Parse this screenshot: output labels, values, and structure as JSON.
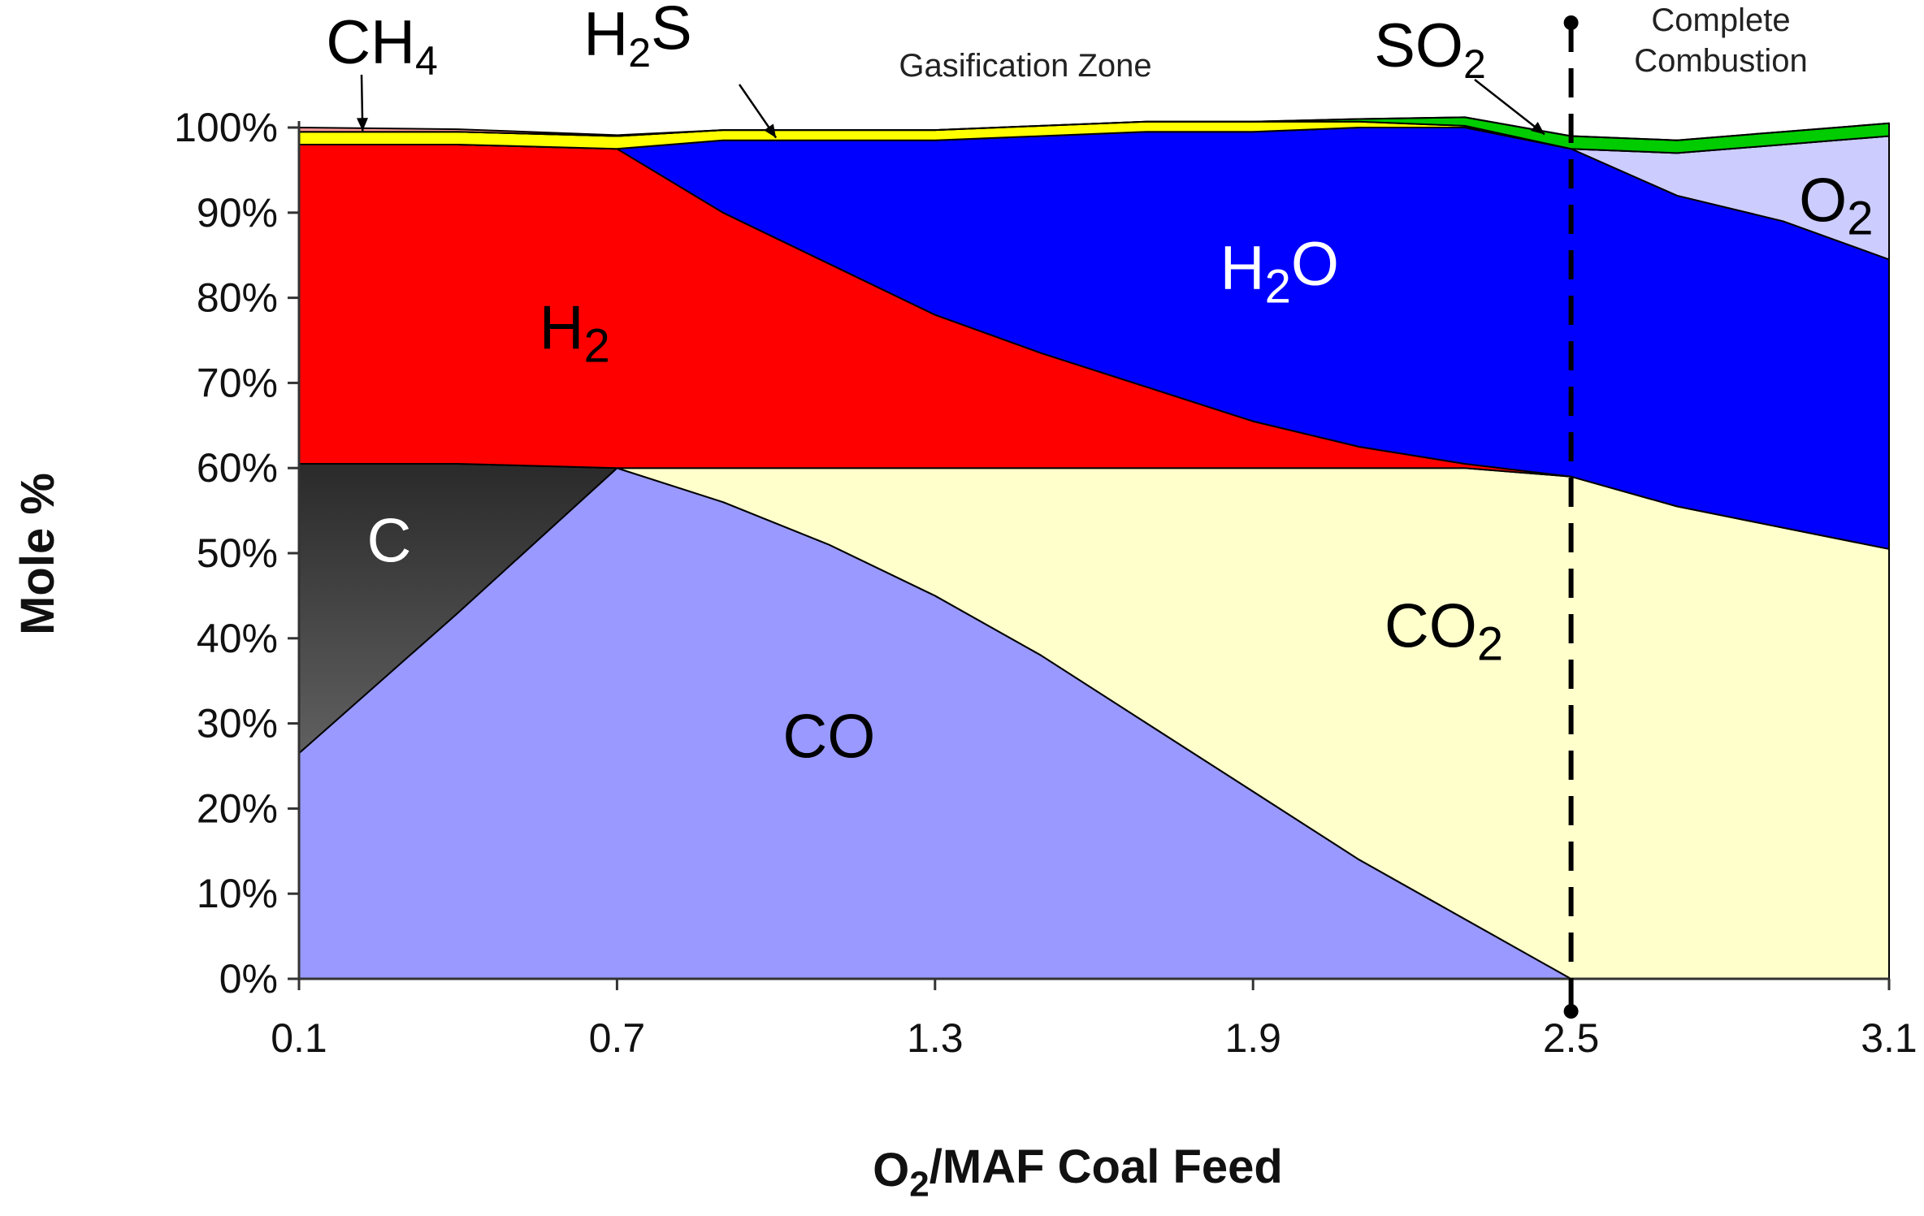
{
  "chart_data": {
    "type": "area",
    "stacked": true,
    "xlabel": {
      "base": "O",
      "sub": "2",
      "rest": "/MAF Coal Feed"
    },
    "ylabel": "Mole %",
    "xlim": [
      0.1,
      3.1
    ],
    "ylim": [
      0,
      100
    ],
    "x_ticks": [
      {
        "value": 0.1,
        "label": "0.1"
      },
      {
        "value": 0.7,
        "label": "0.7"
      },
      {
        "value": 1.3,
        "label": "1.3"
      },
      {
        "value": 1.9,
        "label": "1.9"
      },
      {
        "value": 2.5,
        "label": "2.5"
      },
      {
        "value": 3.1,
        "label": "3.1"
      }
    ],
    "y_ticks": [
      {
        "value": 0,
        "label": "0%"
      },
      {
        "value": 10,
        "label": "10%"
      },
      {
        "value": 20,
        "label": "20%"
      },
      {
        "value": 30,
        "label": "30%"
      },
      {
        "value": 40,
        "label": "40%"
      },
      {
        "value": 50,
        "label": "50%"
      },
      {
        "value": 60,
        "label": "60%"
      },
      {
        "value": 70,
        "label": "70%"
      },
      {
        "value": 80,
        "label": "80%"
      },
      {
        "value": 90,
        "label": "90%"
      },
      {
        "value": 100,
        "label": "100%"
      }
    ],
    "x": [
      0.1,
      0.4,
      0.7,
      0.9,
      1.1,
      1.3,
      1.5,
      1.7,
      1.9,
      2.1,
      2.3,
      2.5,
      2.7,
      2.9,
      3.1
    ],
    "series": [
      {
        "name": "CO",
        "sub": "",
        "base": "CO",
        "color": "#9999ff",
        "label_color": "#000000",
        "label_at": [
          1.1,
          26
        ],
        "values": [
          26.5,
          43,
          60,
          56,
          51,
          45,
          38,
          30,
          22,
          14,
          7,
          0,
          0,
          0,
          0
        ]
      },
      {
        "name": "C",
        "sub": "",
        "base": "C",
        "color": "#3a3a3a",
        "gradient": [
          "#2a2a2a",
          "#8a8a8a"
        ],
        "label_color": "#ffffff",
        "label_at": [
          0.27,
          49
        ],
        "values": [
          34,
          17.5,
          0,
          0,
          0,
          0,
          0,
          0,
          0,
          0,
          0,
          0,
          0,
          0,
          0
        ]
      },
      {
        "name": "CO2",
        "base": "CO",
        "sub": "2",
        "color": "#ffffcc",
        "label_color": "#000000",
        "label_at": [
          2.26,
          39
        ],
        "values": [
          0,
          0,
          0,
          4,
          9,
          15,
          22,
          30,
          38,
          46,
          53,
          59,
          55.5,
          53,
          50.5
        ]
      },
      {
        "name": "H2",
        "base": "H",
        "sub": "2",
        "color": "#ff0000",
        "label_color": "#000000",
        "label_at": [
          0.62,
          74
        ],
        "values": [
          37.5,
          37.5,
          37.5,
          30,
          24,
          18,
          13.5,
          9.5,
          5.5,
          2.5,
          0.5,
          0,
          0,
          0,
          0
        ]
      },
      {
        "name": "H2O",
        "base": "H",
        "sub": "2",
        "rest": "O",
        "color": "#0000ff",
        "label_color": "#ffffff",
        "label_at": [
          1.95,
          81
        ],
        "values": [
          0,
          0,
          0,
          8.5,
          14.5,
          20.5,
          25.5,
          30,
          34,
          37.5,
          39.5,
          38.5,
          36.5,
          36,
          34
        ]
      },
      {
        "name": "O2",
        "base": "O",
        "sub": "2",
        "color": "#ccccff",
        "label_color": "#000000",
        "label_at": [
          3.0,
          89
        ],
        "values": [
          0,
          0,
          0,
          0,
          0,
          0,
          0,
          0,
          0,
          0,
          0,
          0,
          5,
          9,
          14.5
        ]
      },
      {
        "name": "H2S",
        "base": "H",
        "sub": "2",
        "rest": "S",
        "color": "#ffff00",
        "label_color": "#000000",
        "values": [
          1.5,
          1.5,
          1.5,
          1.2,
          1.2,
          1.2,
          1.2,
          1.2,
          1.2,
          0.7,
          0.2,
          0,
          0,
          0,
          0
        ]
      },
      {
        "name": "SO2",
        "base": "SO",
        "sub": "2",
        "color": "#00cc00",
        "label_color": "#000000",
        "values": [
          0,
          0,
          0,
          0,
          0,
          0,
          0,
          0,
          0,
          0.3,
          1,
          1.5,
          1.5,
          1.5,
          1.5
        ]
      },
      {
        "name": "CH4",
        "base": "CH",
        "sub": "4",
        "color": "#ff9999",
        "label_color": "#000000",
        "values": [
          0.5,
          0.3,
          0.1,
          0,
          0,
          0,
          0,
          0,
          0,
          0,
          0,
          0,
          0,
          0,
          0
        ]
      }
    ],
    "reference_line": {
      "x": 2.5,
      "style": "dashed",
      "label_lines": [
        "Complete",
        "Combustion"
      ]
    },
    "annotations": [
      {
        "text": "Gasification Zone"
      }
    ],
    "callouts": [
      {
        "series": "CH4",
        "points_to": [
          0.22,
          99.6
        ]
      },
      {
        "series": "H2S",
        "points_to": [
          1.0,
          98.8
        ]
      },
      {
        "series": "SO2",
        "points_to": [
          2.45,
          99.2
        ]
      }
    ]
  }
}
